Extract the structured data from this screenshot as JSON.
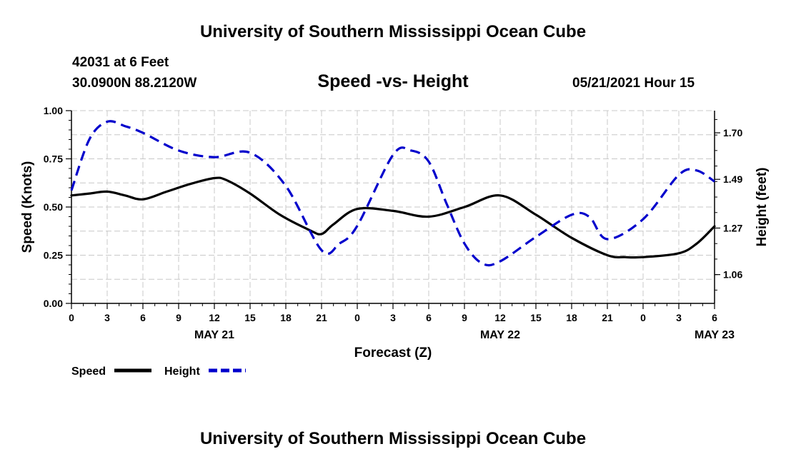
{
  "page": {
    "title_top": "University of Southern Mississippi Ocean Cube",
    "title_bottom": "University of Southern Mississippi Ocean Cube",
    "station": "42031 at 6 Feet",
    "location": "30.0900N  88.2120W",
    "datetime": "05/21/2021 Hour 15"
  },
  "chart_data": {
    "type": "line",
    "title": "Speed -vs- Height",
    "xlabel": "Forecast (Z)",
    "ylabel": "Speed (Knots)",
    "y2label": "Height (feet)",
    "x_ticks": [
      "0",
      "3",
      "6",
      "9",
      "12",
      "15",
      "18",
      "21",
      "0",
      "3",
      "6",
      "9",
      "12",
      "15",
      "18",
      "21",
      "0",
      "3",
      "6"
    ],
    "date_labels": [
      {
        "label": "MAY 21",
        "hour": 12
      },
      {
        "label": "MAY 22",
        "hour": 36
      },
      {
        "label": "MAY 23",
        "hour": 54
      }
    ],
    "xlim": [
      0,
      54
    ],
    "ylim": [
      0,
      1.0
    ],
    "y_ticks": [
      "0.00",
      "0.25",
      "0.50",
      "0.75",
      "1.00"
    ],
    "y2lim": [
      0.93,
      1.8
    ],
    "y2_ticks": [
      "1.06",
      "1.27",
      "1.49",
      "1.70"
    ],
    "grid": true,
    "legend": [
      "Speed",
      "Height"
    ],
    "legend_position": "bottom-left",
    "series": [
      {
        "name": "Speed",
        "color": "#000000",
        "axis": "left",
        "style": "solid",
        "x": [
          0,
          1.5,
          3,
          4.5,
          6,
          8,
          10,
          12,
          13,
          15,
          17.5,
          20,
          21,
          22,
          24,
          27,
          30,
          33,
          36,
          39,
          42,
          45,
          46.5,
          48,
          51,
          52.5,
          54
        ],
        "values": [
          0.56,
          0.57,
          0.58,
          0.56,
          0.54,
          0.58,
          0.62,
          0.65,
          0.64,
          0.57,
          0.46,
          0.38,
          0.36,
          0.41,
          0.49,
          0.48,
          0.45,
          0.5,
          0.56,
          0.46,
          0.34,
          0.25,
          0.24,
          0.24,
          0.26,
          0.31,
          0.4
        ]
      },
      {
        "name": "Height",
        "color": "#0000cc",
        "axis": "right",
        "style": "dashed",
        "x": [
          0,
          1.5,
          3,
          4.5,
          6,
          9,
          12,
          15,
          18,
          21,
          22.5,
          24,
          27,
          28.5,
          30,
          31.5,
          33,
          34.5,
          36,
          39,
          42,
          43.5,
          45,
          48,
          51,
          52.5,
          54
        ],
        "values": [
          1.44,
          1.67,
          1.75,
          1.73,
          1.7,
          1.62,
          1.59,
          1.61,
          1.46,
          1.17,
          1.2,
          1.28,
          1.6,
          1.62,
          1.57,
          1.38,
          1.2,
          1.11,
          1.12,
          1.23,
          1.33,
          1.32,
          1.22,
          1.31,
          1.51,
          1.53,
          1.48
        ]
      }
    ]
  }
}
